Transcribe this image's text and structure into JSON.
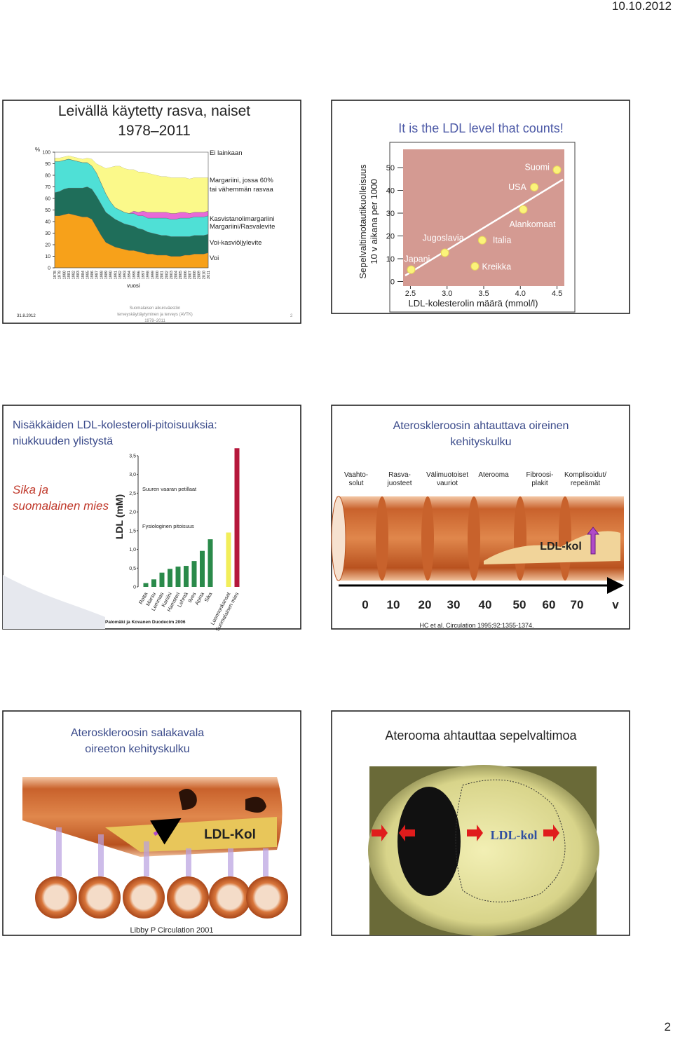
{
  "header": {
    "date": "10.10.2012"
  },
  "slides": [
    {
      "title": "Leivällä käytetty rasva, naiset\n1978–2011",
      "chart": {
        "type": "area",
        "stacked": true,
        "y_label": "%",
        "x_label": "vuosi",
        "x": [
          "1978",
          "1979",
          "1980",
          "1981",
          "1982",
          "1983",
          "1984",
          "1985",
          "1986",
          "1987",
          "1988",
          "1989",
          "1990",
          "1991",
          "1992",
          "1993",
          "1994",
          "1995",
          "1996",
          "1997",
          "1998",
          "1999",
          "2000",
          "2001",
          "2002",
          "2003",
          "2004",
          "2005",
          "2006",
          "2007",
          "2008",
          "2009",
          "2010",
          "2011"
        ],
        "series": [
          {
            "name": "Voi",
            "color": "#f7a11a",
            "values": [
              45,
              45,
              46,
              47,
              46,
              45,
              44,
              44,
              42,
              35,
              28,
              22,
              20,
              18,
              17,
              16,
              15,
              15,
              14,
              13,
              12,
              12,
              11,
              11,
              11,
              10,
              10,
              10,
              11,
              11,
              12,
              12,
              12,
              13
            ]
          },
          {
            "name": "Voi-kasviöljylevite",
            "color": "#1f6e5a",
            "values": [
              20,
              21,
              22,
              22,
              23,
              24,
              25,
              26,
              26,
              27,
              27,
              26,
              25,
              24,
              23,
              22,
              22,
              21,
              20,
              20,
              19,
              18,
              18,
              17,
              17,
              17,
              17,
              17,
              16,
              16,
              16,
              16,
              16,
              16
            ]
          },
          {
            "name": "Margariini/Rasvalevite",
            "color": "#4fe0d6",
            "values": [
              27,
              26,
              25,
              25,
              24,
              23,
              22,
              21,
              20,
              20,
              18,
              16,
              12,
              10,
              10,
              10,
              10,
              11,
              11,
              12,
              12,
              13,
              14,
              15,
              15,
              15,
              15,
              16,
              16,
              16,
              16,
              16,
              16,
              16
            ]
          },
          {
            "name": "Kasvistanolimargariini",
            "color": "#e86ad8",
            "values": [
              0,
              0,
              0,
              0,
              0,
              0,
              0,
              0,
              0,
              0,
              0,
              0,
              0,
              0,
              0,
              0,
              0,
              2,
              3,
              4,
              5,
              5,
              5,
              5,
              5,
              5,
              5,
              5,
              5,
              4,
              4,
              4,
              4,
              4
            ]
          },
          {
            "name": "Margariini, jossa 60%\ntai vähemmän rasvaa",
            "color": "#fbf98a",
            "values": [
              3,
              3,
              3,
              3,
              3,
              3,
              3,
              4,
              6,
              8,
              15,
              22,
              30,
              36,
              38,
              38,
              38,
              36,
              35,
              34,
              34,
              33,
              32,
              31,
              31,
              31,
              31,
              30,
              30,
              30,
              30,
              30,
              30,
              29
            ]
          },
          {
            "name": "Ei lainkaan",
            "color": "#ffffff",
            "values": [
              5,
              5,
              4,
              3,
              4,
              5,
              6,
              5,
              6,
              10,
              12,
              14,
              13,
              12,
              12,
              14,
              15,
              15,
              17,
              17,
              18,
              19,
              20,
              21,
              21,
              22,
              22,
              22,
              22,
              23,
              22,
              22,
              22,
              22
            ]
          }
        ],
        "ylim": [
          0,
          100
        ],
        "yticks": [
          0,
          10,
          20,
          30,
          40,
          50,
          60,
          70,
          80,
          90,
          100
        ]
      },
      "footer": {
        "date": "31.8.2012",
        "source": "Suomalaisen aikuisväestön\nterveyskäyttäytyminen ja terveys (AVTK)\n1978–2011",
        "number": "2"
      }
    },
    {
      "title": "It is the LDL level that counts!",
      "chart": {
        "type": "scatter",
        "x_label": "LDL-kolesterolin määrä (mmol/l)",
        "y_label": "Sepelvaltimotautikuolleisuus\n10 v aikana per 1000",
        "color": "#fbf37a",
        "x": [
          2.51,
          2.97,
          3.48,
          3.38,
          4.04,
          4.19,
          4.5
        ],
        "values": [
          5.2,
          12.6,
          18.1,
          6.7,
          31.6,
          41.4,
          49
        ],
        "point_labels": [
          "Japani",
          "Jugoslavia",
          "Italia",
          "Kreikka",
          "Alankomaat",
          "USA",
          "Suomi"
        ],
        "xlim": [
          2.4,
          4.6
        ],
        "ylim": [
          -2,
          58
        ],
        "xticks": [
          2.5,
          {
            "value": 3,
            "label": "3.0"
          },
          3.5,
          {
            "value": 4,
            "label": "4.0"
          },
          4.5
        ],
        "yticks": [
          0,
          10,
          20,
          30,
          40,
          50
        ]
      }
    },
    {
      "title": "Nisäkkäiden LDL-kolesteroli-pitoisuuksia:\nniukkuuden ylistystä",
      "side_text": "Sika ja\nsuomalainen mies",
      "chart": {
        "type": "bar",
        "y_label": "LDL (mM)",
        "categories": [
          "Rotta",
          "Marsu",
          "Lemmas",
          "Kaniini",
          "Hamsteri",
          "Lehmä",
          "Ilves",
          "Apina",
          "Sika",
          "Luonnonkansat",
          "Suomalainen mies"
        ],
        "values": [
          0.1,
          0.2,
          0.38,
          0.48,
          0.54,
          0.56,
          0.69,
          0.96,
          1.27,
          1.45,
          3.7
        ],
        "colors": [
          "#2a8a4a",
          "#2a8a4a",
          "#2a8a4a",
          "#2a8a4a",
          "#2a8a4a",
          "#2a8a4a",
          "#2a8a4a",
          "#2a8a4a",
          "#2a8a4a",
          "#f2ee5a",
          "#b5173b"
        ],
        "annotations": [
          "Suuren vaaran petillaat",
          "Fysiologinen pitoisuus"
        ],
        "ylim": [
          0,
          3.6
        ],
        "yticks": [
          0,
          {
            "value": 0.5,
            "label": "0,5"
          },
          {
            "value": 1,
            "label": "1,0"
          },
          {
            "value": 1.5,
            "label": "1,5"
          },
          {
            "value": 2,
            "label": "2,0"
          },
          {
            "value": 2.5,
            "label": "2,5"
          },
          {
            "value": 3,
            "label": "3,0"
          },
          {
            "value": 3.5,
            "label": "3,5"
          }
        ]
      },
      "source": "Palomäki ja Kovanen Duodecim 2006"
    },
    {
      "title": "Ateroskleroosin ahtauttava oireinen\nkehityskulku",
      "stages": [
        "Vaahto-\nsolut",
        "Rasva-\njuosteet",
        "Välimuotoiset\nvauriot",
        "Aterooma",
        "Fibroosi-\nplakit",
        "Komplisoidut/\nrepeämät"
      ],
      "label": "LDL-kol",
      "timeline": [
        "0",
        "10",
        "20",
        "30",
        "40",
        "50",
        "60",
        "70",
        "v"
      ],
      "citation": "HC et al. Circulation 1995;92:1355-1374."
    },
    {
      "title": "Ateroskleroosin salakavala\noireeton kehityskulku",
      "label": "LDL-Kol",
      "citation": "Libby P Circulation 2001"
    },
    {
      "title": "Aterooma ahtauttaa sepelvaltimoa",
      "label": "LDL-kol"
    }
  ],
  "footer": {
    "page": "2"
  }
}
